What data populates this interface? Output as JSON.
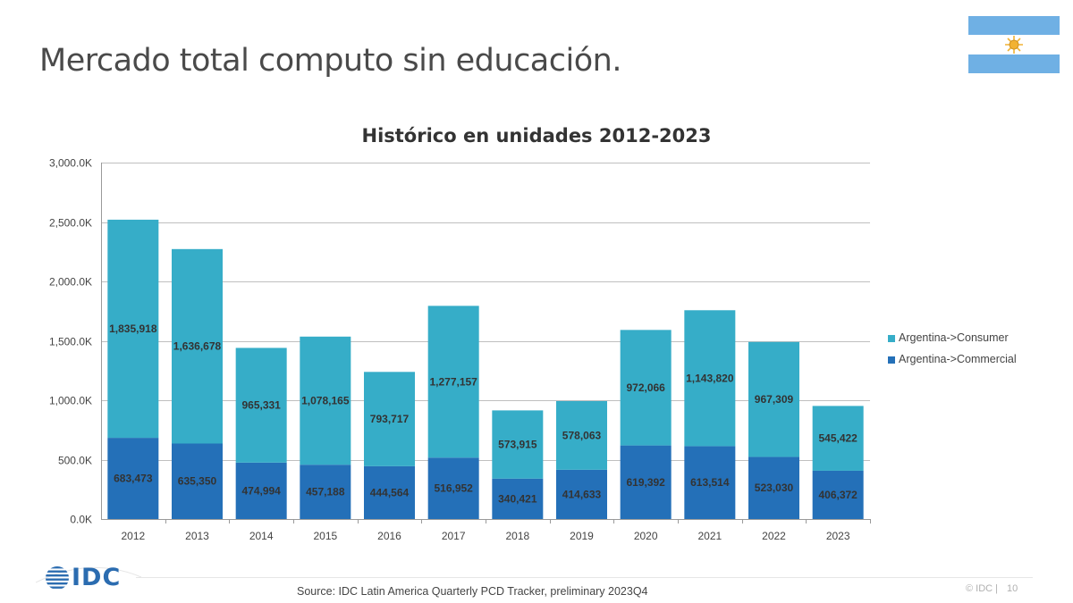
{
  "page": {
    "title": "Mercado total computo sin educación.",
    "source": "Source: IDC Latin America Quarterly PCD Tracker, preliminary 2023Q4",
    "copyright": "© IDC |",
    "page_number": "10",
    "logo_text": "IDC"
  },
  "colors": {
    "consumer": "#36adc8",
    "commercial": "#2470b8",
    "grid": "#bfbfbf",
    "flag_blue": "#6fb0e4",
    "flag_sun": "#f2b233"
  },
  "chart_data": {
    "type": "bar",
    "stacked": true,
    "title": "Histórico en unidades  2012-2023",
    "xlabel": "",
    "ylabel": "",
    "ylim": [
      0,
      3000000
    ],
    "yticks": [
      0,
      500000,
      1000000,
      1500000,
      2000000,
      2500000,
      3000000
    ],
    "ytick_labels": [
      "0.0K",
      "500.0K",
      "1,000.0K",
      "1,500.0K",
      "2,000.0K",
      "2,500.0K",
      "3,000.0K"
    ],
    "grid": true,
    "legend_position": "right",
    "categories": [
      "2012",
      "2013",
      "2014",
      "2015",
      "2016",
      "2017",
      "2018",
      "2019",
      "2020",
      "2021",
      "2022",
      "2023"
    ],
    "series": [
      {
        "name": "Argentina->Commercial",
        "color": "#2470b8",
        "values": [
          683473,
          635350,
          474994,
          457188,
          444564,
          516952,
          340421,
          414633,
          619392,
          613514,
          523030,
          406372
        ],
        "labels": [
          "683,473",
          "635,350",
          "474,994",
          "457,188",
          "444,564",
          "516,952",
          "340,421",
          "414,633",
          "619,392",
          "613,514",
          "523,030",
          "406,372"
        ]
      },
      {
        "name": "Argentina->Consumer",
        "color": "#36adc8",
        "values": [
          1835918,
          1636678,
          965331,
          1078165,
          793717,
          1277157,
          573915,
          578063,
          972066,
          1143820,
          967309,
          545422
        ],
        "labels": [
          "1,835,918",
          "1,636,678",
          "965,331",
          "1,078,165",
          "793,717",
          "1,277,157",
          "573,915",
          "578,063",
          "972,066",
          "1,143,820",
          "967,309",
          "545,422"
        ]
      }
    ],
    "legend": [
      {
        "name": "Argentina->Consumer",
        "color": "#36adc8"
      },
      {
        "name": "Argentina->Commercial",
        "color": "#2470b8"
      }
    ]
  }
}
